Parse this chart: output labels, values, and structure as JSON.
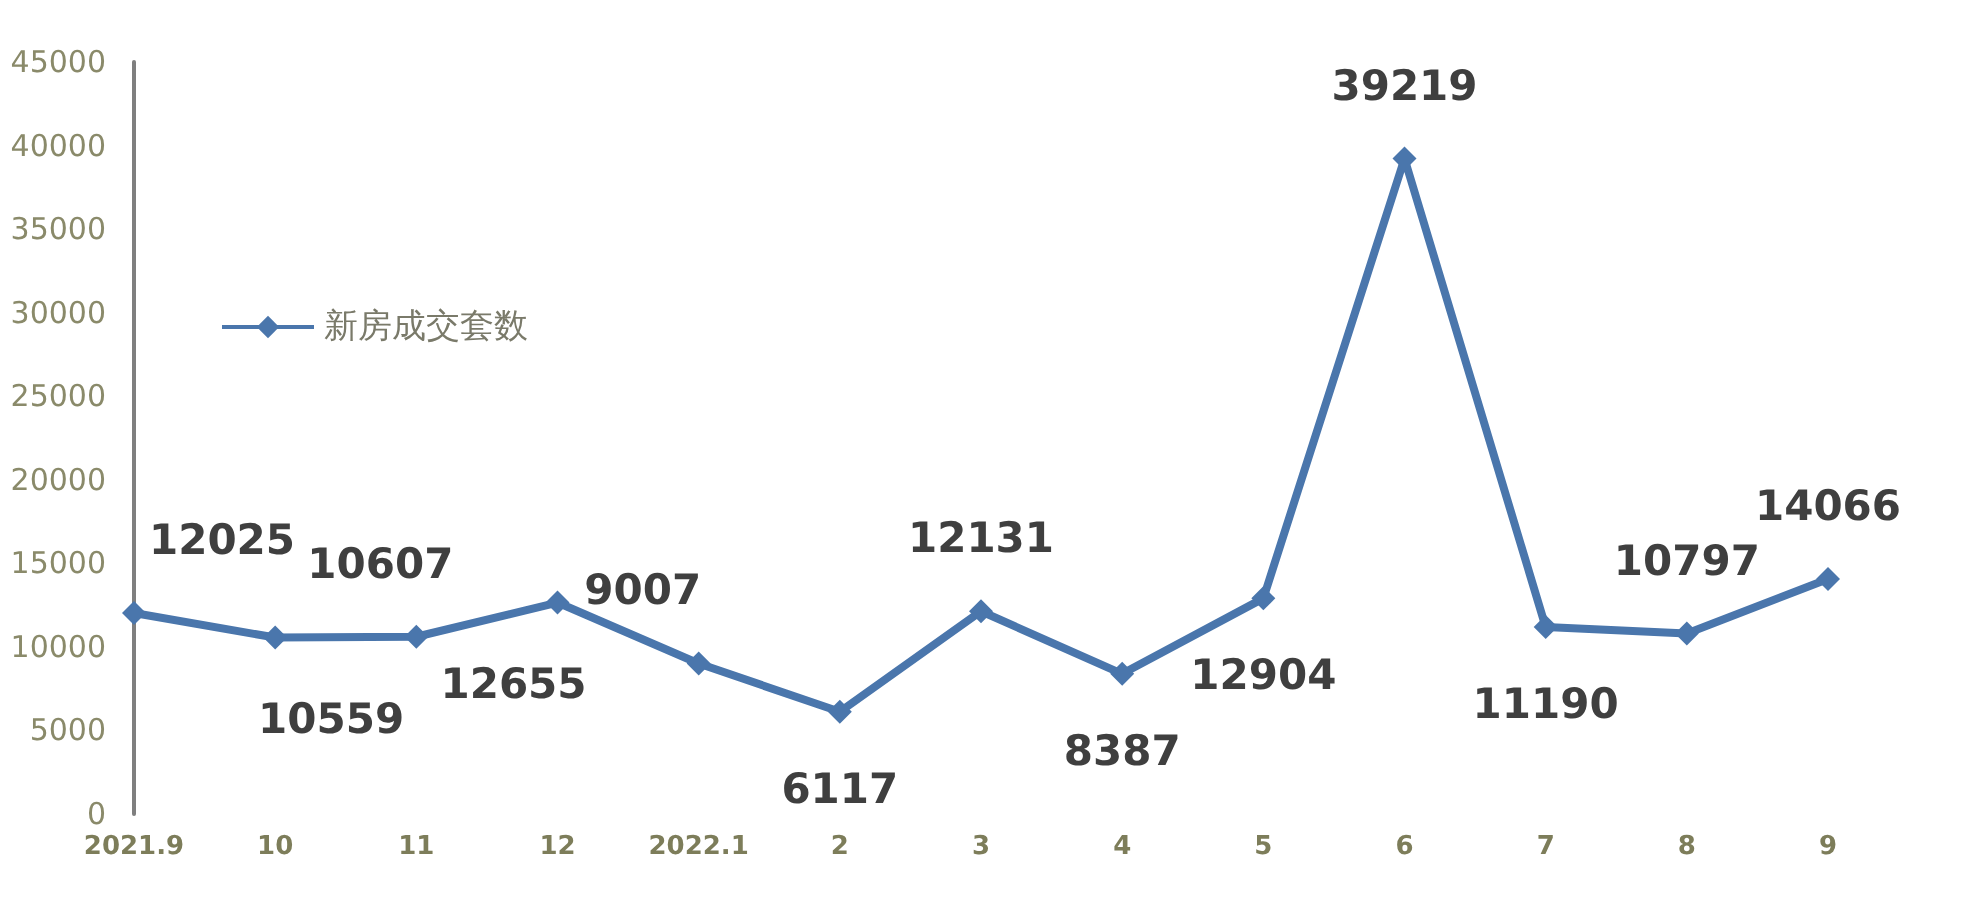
{
  "chart_data": {
    "type": "line",
    "categories": [
      "2021.9",
      "10",
      "11",
      "12",
      "2022.1",
      "2",
      "3",
      "4",
      "5",
      "6",
      "7",
      "8",
      "9"
    ],
    "series": [
      {
        "name": "新房成交套数",
        "color": "#4a76ac",
        "values": [
          12025,
          10559,
          10607,
          12655,
          9007,
          6117,
          12131,
          8387,
          12904,
          39219,
          11190,
          10797,
          14066
        ]
      }
    ],
    "ylim": [
      0,
      45000
    ],
    "yticks": [
      0,
      5000,
      10000,
      15000,
      20000,
      25000,
      30000,
      35000,
      40000,
      45000
    ],
    "grid": false,
    "legend": "top left",
    "marker": "diamond",
    "line_style": "solid",
    "data_labels": true
  }
}
